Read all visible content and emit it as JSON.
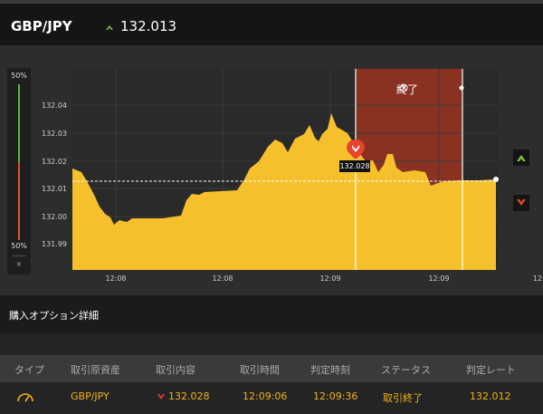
{
  "header": {
    "pair": "GBP/JPY",
    "rate": "132.013",
    "rate_icon": "up-arrow-icon"
  },
  "gauge": {
    "top_label": "50%",
    "bottom_label": "50%",
    "close_label": "×"
  },
  "chart_data": {
    "type": "area",
    "y_ticks": [
      "132.04",
      "132.03",
      "132.02",
      "132.01",
      "132.00",
      "131.99"
    ],
    "x_ticks": [
      "12:08",
      "12:08",
      "12:09",
      "12:09",
      "12"
    ],
    "current_rate": 132.013,
    "entry_marker_value": "132.028",
    "expiry_label": "終了",
    "colors": {
      "area": "#f5c02c",
      "expiry_zone": "#8a3222",
      "line": "#ffffff"
    }
  },
  "buttons": {
    "high_icon": "up-arrow-icon",
    "low_icon": "down-arrow-icon"
  },
  "section": {
    "title": "購入オプション詳細"
  },
  "table": {
    "headers": [
      "タイプ",
      "取引原資産",
      "取引内容",
      "取引時間",
      "判定時刻",
      "ステータス",
      "判定レート"
    ],
    "rows": [
      {
        "type_icon": "gauge-icon",
        "asset": "GBP/JPY",
        "direction_icon": "down-arrow-icon",
        "content": "132.028",
        "time": "12:09:06",
        "judge_time": "12:09:36",
        "status": "取引終了",
        "rate": "132.012"
      }
    ]
  }
}
